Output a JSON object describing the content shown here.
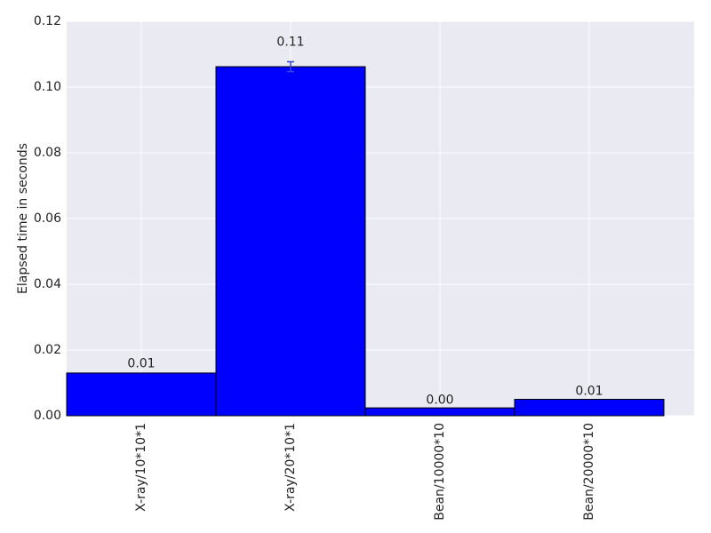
{
  "chart_data": {
    "type": "bar",
    "y_label": "Elapsed time in seconds",
    "categories": [
      "X-ray/10*10*1",
      "X-ray/20*10*1",
      "Bean/10000*10",
      "Bean/20000*10"
    ],
    "values": [
      0.013,
      0.1062,
      0.0024,
      0.005
    ],
    "value_labels": [
      "0.01",
      "0.11",
      "0.00",
      "0.01"
    ],
    "errors": [
      0,
      0.0015,
      0,
      0
    ],
    "color": "#0000ff",
    "error_color": "#3344dd",
    "ylim": [
      0,
      0.12
    ],
    "yticks": [
      {
        "value": 0,
        "label": "0.00"
      },
      0.02,
      0.04,
      0.06,
      0.08,
      {
        "value": 0.1,
        "label": "0.10"
      },
      0.12
    ],
    "grid": true
  }
}
